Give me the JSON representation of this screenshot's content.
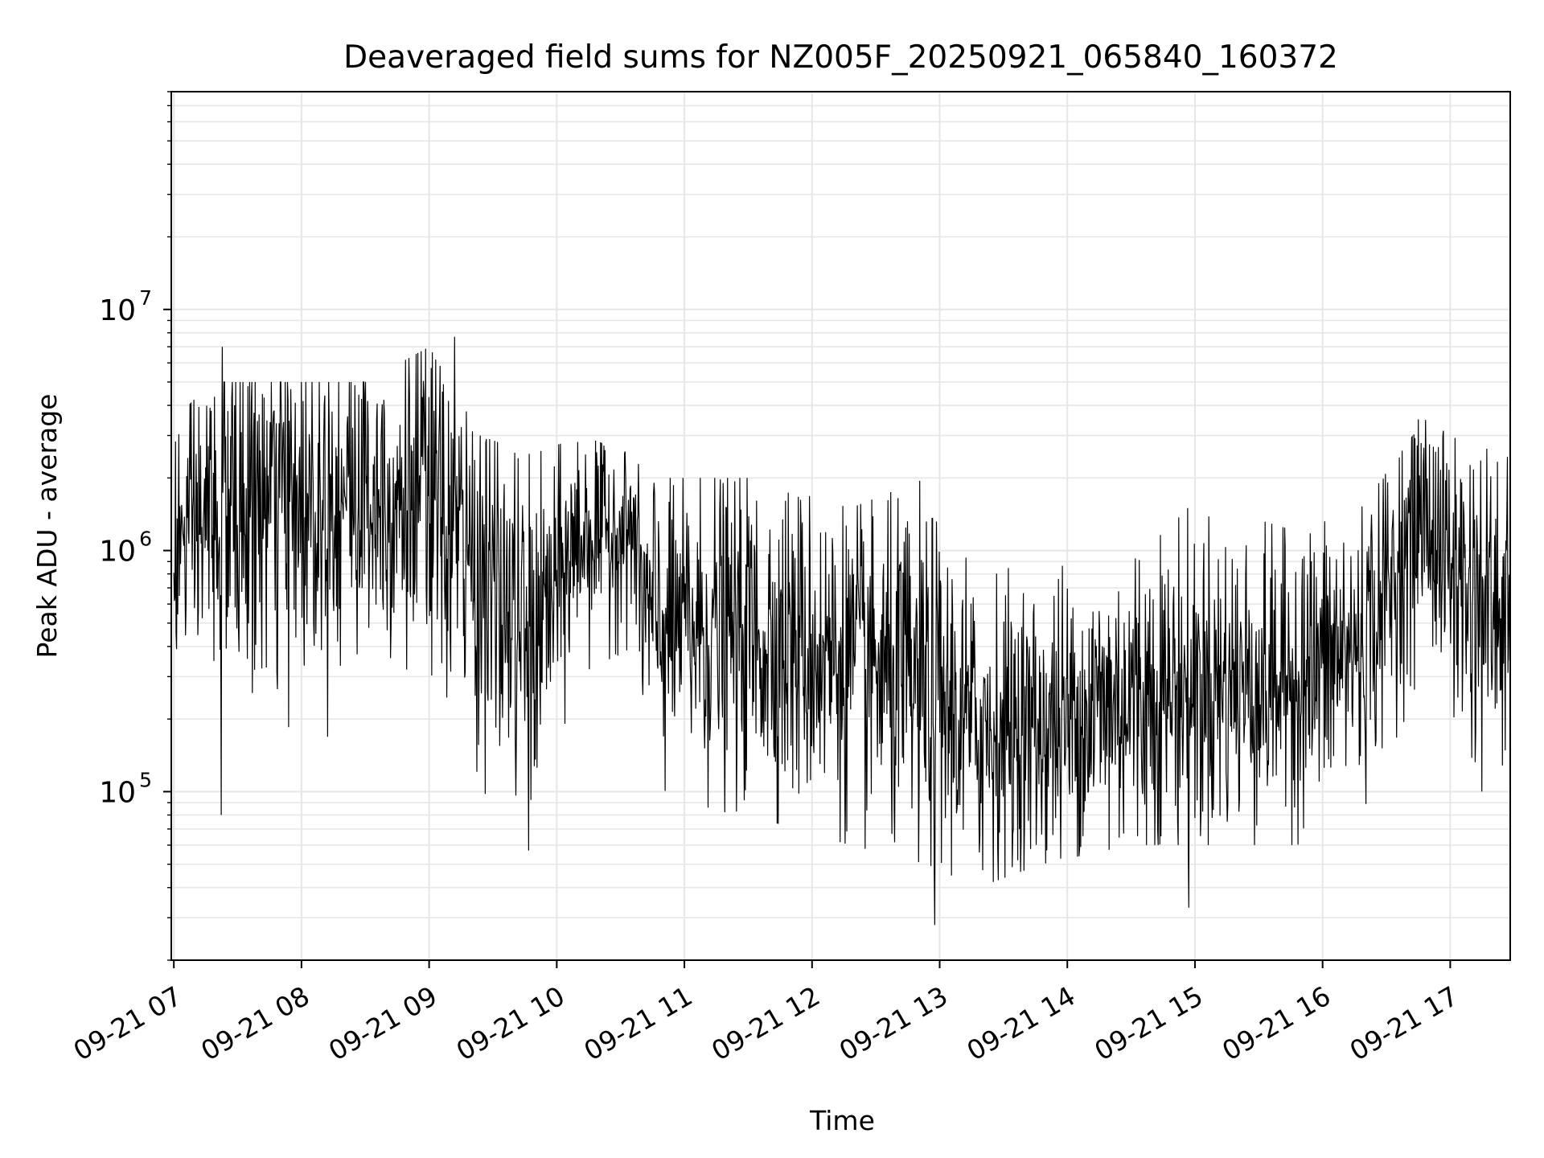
{
  "chart_data": {
    "type": "line",
    "title": "Deaveraged field sums for NZ005F_20250921_065840_160372",
    "xlabel": "Time",
    "ylabel": "Peak ADU - average",
    "yscale": "log",
    "ylim": [
      20000,
      80000000
    ],
    "xlim_hours": [
      6.98,
      17.47
    ],
    "x_tick_labels": [
      "09-21 07",
      "09-21 08",
      "09-21 09",
      "09-21 10",
      "09-21 11",
      "09-21 12",
      "09-21 13",
      "09-21 14",
      "09-21 15",
      "09-21 16",
      "09-21 17"
    ],
    "x_tick_hours": [
      7,
      8,
      9,
      10,
      11,
      12,
      13,
      14,
      15,
      16,
      17
    ],
    "y_tick_labels": [
      {
        "base": "10",
        "exp": "5",
        "value": 100000
      },
      {
        "base": "10",
        "exp": "6",
        "value": 1000000
      },
      {
        "base": "10",
        "exp": "7",
        "value": 10000000
      }
    ],
    "grid": true,
    "line_color": "#000000",
    "grid_color": "#e6e6e6",
    "series": [
      {
        "name": "Deaveraged field sums",
        "envelope": [
          {
            "hour": 7.0,
            "median": 1000000,
            "low": 250000,
            "high": 3500000
          },
          {
            "hour": 7.3,
            "median": 1400000,
            "low": 200000,
            "high": 5000000
          },
          {
            "hour": 7.6,
            "median": 1500000,
            "low": 150000,
            "high": 5000000
          },
          {
            "hour": 8.0,
            "median": 1600000,
            "low": 150000,
            "high": 5000000
          },
          {
            "hour": 8.5,
            "median": 1800000,
            "low": 200000,
            "high": 5000000
          },
          {
            "hour": 9.0,
            "median": 1600000,
            "low": 200000,
            "high": 7000000
          },
          {
            "hour": 9.4,
            "median": 800000,
            "low": 100000,
            "high": 3000000
          },
          {
            "hour": 9.8,
            "median": 400000,
            "low": 80000,
            "high": 2500000
          },
          {
            "hour": 10.2,
            "median": 1200000,
            "low": 300000,
            "high": 3000000
          },
          {
            "hour": 10.6,
            "median": 1200000,
            "low": 400000,
            "high": 2500000
          },
          {
            "hour": 10.7,
            "median": 500000,
            "low": 90000,
            "high": 2000000
          },
          {
            "hour": 11.5,
            "median": 450000,
            "low": 80000,
            "high": 2000000
          },
          {
            "hour": 12.3,
            "median": 350000,
            "low": 60000,
            "high": 1500000
          },
          {
            "hour": 12.9,
            "median": 250000,
            "low": 50000,
            "high": 2000000
          },
          {
            "hour": 13.3,
            "median": 180000,
            "low": 40000,
            "high": 800000
          },
          {
            "hour": 13.8,
            "median": 180000,
            "low": 50000,
            "high": 900000
          },
          {
            "hour": 14.5,
            "median": 250000,
            "low": 60000,
            "high": 1500000
          },
          {
            "hour": 15.2,
            "median": 280000,
            "low": 60000,
            "high": 1500000
          },
          {
            "hour": 15.8,
            "median": 300000,
            "low": 60000,
            "high": 1200000
          },
          {
            "hour": 16.3,
            "median": 400000,
            "low": 80000,
            "high": 1500000
          },
          {
            "hour": 16.8,
            "median": 1400000,
            "low": 300000,
            "high": 3500000
          },
          {
            "hour": 17.1,
            "median": 700000,
            "low": 100000,
            "high": 2800000
          },
          {
            "hour": 17.47,
            "median": 500000,
            "low": 100000,
            "high": 2500000
          }
        ],
        "notable_points": [
          {
            "hour": 7.38,
            "value": 7000000
          },
          {
            "hour": 7.37,
            "value": 80000
          },
          {
            "hour": 9.2,
            "value": 7700000
          },
          {
            "hour": 9.78,
            "value": 57000
          },
          {
            "hour": 12.96,
            "value": 28000
          },
          {
            "hour": 14.95,
            "value": 33000
          },
          {
            "hour": 16.75,
            "value": 3500000
          }
        ]
      }
    ]
  }
}
